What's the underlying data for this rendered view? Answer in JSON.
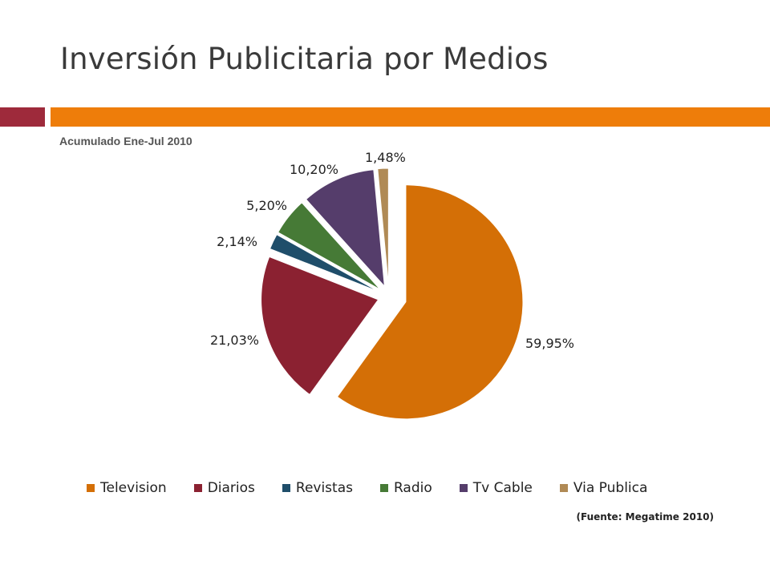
{
  "slide": {
    "title": "Inversión Publicitaria por Medios",
    "source": "(Fuente: Megatime 2010)"
  },
  "chart_data": {
    "type": "pie",
    "title": "Acumulado Ene-Jul 2010",
    "legend_position": "bottom",
    "exploded": true,
    "slices": [
      {
        "name": "Television",
        "value": 59.95,
        "label": "59,95%",
        "color": "#d46f06"
      },
      {
        "name": "Diarios",
        "value": 21.03,
        "label": "21,03%",
        "color": "#8b2131"
      },
      {
        "name": "Revistas",
        "value": 2.14,
        "label": "2,14%",
        "color": "#1f4e6a"
      },
      {
        "name": "Radio",
        "value": 5.2,
        "label": "5,20%",
        "color": "#467a36"
      },
      {
        "name": "Tv Cable",
        "value": 10.2,
        "label": "10,20%",
        "color": "#553d6b"
      },
      {
        "name": "Via Publica",
        "value": 1.48,
        "label": "1,48%",
        "color": "#b08a55"
      }
    ]
  }
}
